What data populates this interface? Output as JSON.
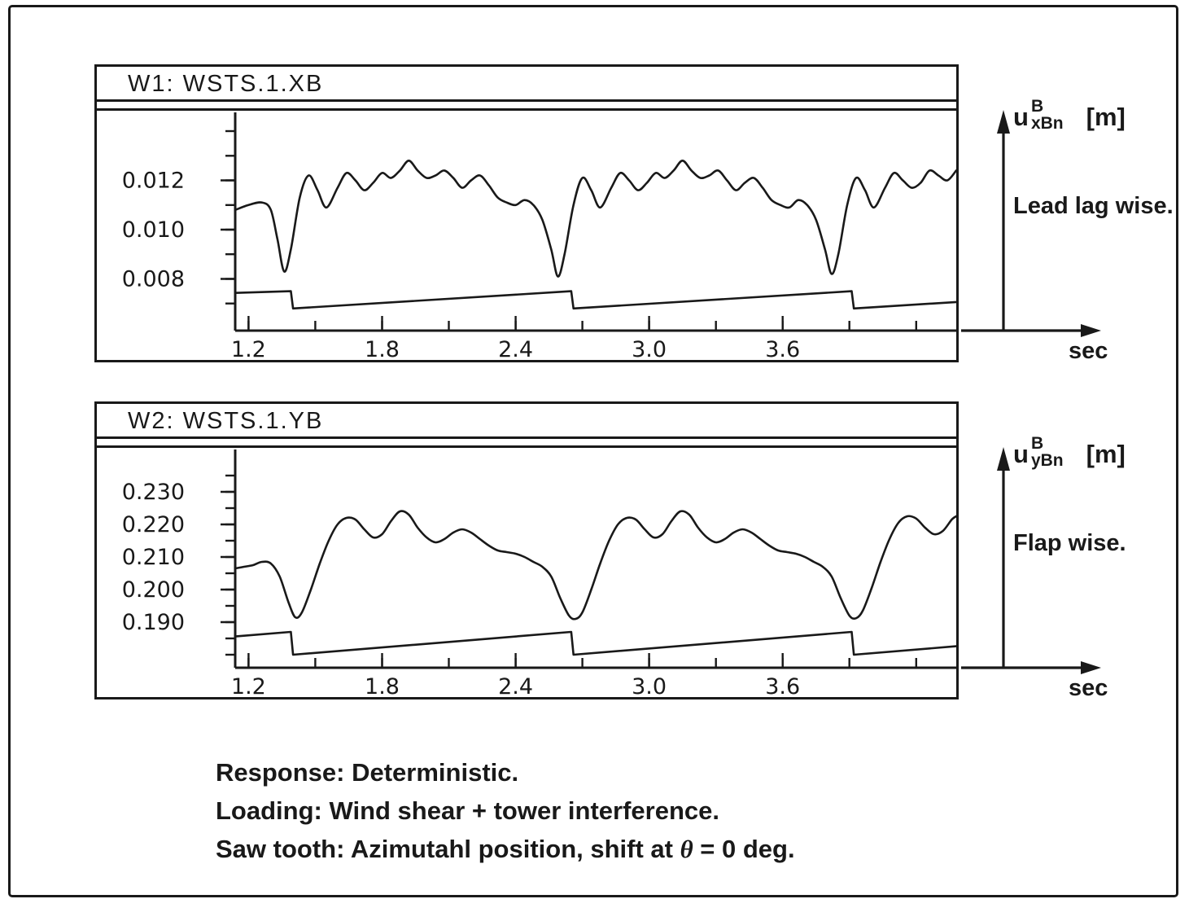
{
  "figure": {
    "caption": {
      "line1": "Response: Deterministic.",
      "line2": "Loading: Wind shear + tower interference.",
      "line3_prefix": "Saw tooth: Azimutahl position, shift at ",
      "line3_theta": "θ",
      "line3_suffix": " = 0 deg."
    },
    "colors": {
      "ink": "#191919",
      "paper": "#ffffff"
    }
  },
  "panels": [
    {
      "title": "W1:  WSTS.1.XB",
      "axis_label": {
        "base": "u",
        "sup": "B",
        "sub": "xBn",
        "unit": "[m]"
      },
      "direction_label": "Lead lag wise.",
      "x_unit": "sec"
    },
    {
      "title": "W2:  WSTS.1.YB",
      "axis_label": {
        "base": "u",
        "sup": "B",
        "sub": "yBn",
        "unit": "[m]"
      },
      "direction_label": "Flap wise.",
      "x_unit": "sec"
    }
  ],
  "chart_data": [
    {
      "type": "line",
      "title": "W1: WSTS.1.XB",
      "xlabel": "sec",
      "ylabel": "u_xBn^B [m] (Lead lag wise)",
      "xlim": [
        1.14,
        4.38
      ],
      "ylim": [
        0.0059,
        0.0141
      ],
      "grid": false,
      "xticks": {
        "minor": [
          1.2,
          1.5,
          1.8,
          2.1,
          2.4,
          2.7,
          3.0,
          3.3,
          3.6,
          3.9,
          4.2
        ],
        "major": [
          1.2,
          1.8,
          2.4,
          3.0,
          3.6
        ],
        "labels": [
          "1.2",
          "1.8",
          "2.4",
          "3.0",
          "3.6"
        ]
      },
      "yticks": {
        "minor": [
          0.007,
          0.008,
          0.009,
          0.01,
          0.011,
          0.012,
          0.013,
          0.014
        ],
        "major": [
          0.008,
          0.01,
          0.012
        ],
        "labels": [
          "0.008",
          "0.010",
          "0.012"
        ]
      },
      "series": [
        {
          "name": "blade-lead-lag-deflection",
          "smooth": true,
          "points": [
            [
              1.14,
              0.0108
            ],
            [
              1.2,
              0.011
            ],
            [
              1.26,
              0.0111
            ],
            [
              1.3,
              0.0108
            ],
            [
              1.33,
              0.0096
            ],
            [
              1.36,
              0.0083
            ],
            [
              1.39,
              0.0092
            ],
            [
              1.43,
              0.0113
            ],
            [
              1.47,
              0.0122
            ],
            [
              1.51,
              0.0116
            ],
            [
              1.55,
              0.0109
            ],
            [
              1.6,
              0.0117
            ],
            [
              1.64,
              0.0123
            ],
            [
              1.68,
              0.012
            ],
            [
              1.72,
              0.0116
            ],
            [
              1.76,
              0.0119
            ],
            [
              1.8,
              0.0123
            ],
            [
              1.84,
              0.0121
            ],
            [
              1.88,
              0.0124
            ],
            [
              1.92,
              0.0128
            ],
            [
              1.96,
              0.0124
            ],
            [
              2.0,
              0.0121
            ],
            [
              2.04,
              0.0122
            ],
            [
              2.08,
              0.0124
            ],
            [
              2.12,
              0.0121
            ],
            [
              2.16,
              0.0117
            ],
            [
              2.2,
              0.012
            ],
            [
              2.24,
              0.0122
            ],
            [
              2.28,
              0.0118
            ],
            [
              2.32,
              0.0113
            ],
            [
              2.36,
              0.0111
            ],
            [
              2.4,
              0.011
            ],
            [
              2.44,
              0.0112
            ],
            [
              2.48,
              0.011
            ],
            [
              2.52,
              0.0104
            ],
            [
              2.56,
              0.0092
            ],
            [
              2.59,
              0.0081
            ],
            [
              2.62,
              0.009
            ],
            [
              2.66,
              0.011
            ],
            [
              2.7,
              0.0121
            ],
            [
              2.74,
              0.0116
            ],
            [
              2.78,
              0.0109
            ],
            [
              2.83,
              0.0117
            ],
            [
              2.87,
              0.0123
            ],
            [
              2.91,
              0.012
            ],
            [
              2.95,
              0.0116
            ],
            [
              2.99,
              0.0119
            ],
            [
              3.03,
              0.0123
            ],
            [
              3.07,
              0.0121
            ],
            [
              3.11,
              0.0124
            ],
            [
              3.15,
              0.0128
            ],
            [
              3.19,
              0.0124
            ],
            [
              3.23,
              0.0121
            ],
            [
              3.27,
              0.0122
            ],
            [
              3.31,
              0.0124
            ],
            [
              3.35,
              0.012
            ],
            [
              3.39,
              0.0116
            ],
            [
              3.43,
              0.0119
            ],
            [
              3.47,
              0.0121
            ],
            [
              3.51,
              0.0117
            ],
            [
              3.55,
              0.0112
            ],
            [
              3.59,
              0.011
            ],
            [
              3.63,
              0.0109
            ],
            [
              3.67,
              0.0112
            ],
            [
              3.71,
              0.011
            ],
            [
              3.75,
              0.0104
            ],
            [
              3.79,
              0.0092
            ],
            [
              3.82,
              0.0082
            ],
            [
              3.85,
              0.009
            ],
            [
              3.89,
              0.011
            ],
            [
              3.93,
              0.0121
            ],
            [
              3.97,
              0.0116
            ],
            [
              4.01,
              0.0109
            ],
            [
              4.06,
              0.0117
            ],
            [
              4.1,
              0.0123
            ],
            [
              4.14,
              0.012
            ],
            [
              4.18,
              0.0117
            ],
            [
              4.22,
              0.0119
            ],
            [
              4.26,
              0.0124
            ],
            [
              4.3,
              0.0122
            ],
            [
              4.34,
              0.012
            ],
            [
              4.38,
              0.0124
            ]
          ]
        },
        {
          "name": "azimuth-sawtooth",
          "smooth": false,
          "points": [
            [
              1.14,
              0.00743
            ],
            [
              1.39,
              0.0075
            ],
            [
              1.4,
              0.0068
            ],
            [
              2.65,
              0.0075
            ],
            [
              2.66,
              0.0068
            ],
            [
              3.91,
              0.0075
            ],
            [
              3.92,
              0.0068
            ],
            [
              4.38,
              0.00706
            ]
          ]
        }
      ]
    },
    {
      "type": "line",
      "title": "W2: WSTS.1.YB",
      "xlabel": "sec",
      "ylabel": "u_yBn^B [m] (Flap wise)",
      "xlim": [
        1.14,
        4.38
      ],
      "ylim": [
        0.176,
        0.238
      ],
      "grid": false,
      "xticks": {
        "minor": [
          1.2,
          1.5,
          1.8,
          2.1,
          2.4,
          2.7,
          3.0,
          3.3,
          3.6,
          3.9,
          4.2
        ],
        "major": [
          1.2,
          1.8,
          2.4,
          3.0,
          3.6
        ],
        "labels": [
          "1.2",
          "1.8",
          "2.4",
          "3.0",
          "3.6"
        ]
      },
      "yticks": {
        "minor": [
          0.18,
          0.185,
          0.19,
          0.195,
          0.2,
          0.205,
          0.21,
          0.215,
          0.22,
          0.225,
          0.23,
          0.235
        ],
        "major": [
          0.19,
          0.2,
          0.21,
          0.22,
          0.23
        ],
        "labels": [
          "0.190",
          "0.200",
          "0.210",
          "0.220",
          "0.230"
        ]
      },
      "series": [
        {
          "name": "blade-flap-deflection",
          "smooth": true,
          "points": [
            [
              1.14,
              0.2065
            ],
            [
              1.18,
              0.207
            ],
            [
              1.22,
              0.2075
            ],
            [
              1.26,
              0.2085
            ],
            [
              1.3,
              0.208
            ],
            [
              1.34,
              0.204
            ],
            [
              1.38,
              0.196
            ],
            [
              1.41,
              0.1915
            ],
            [
              1.44,
              0.193
            ],
            [
              1.48,
              0.2
            ],
            [
              1.52,
              0.208
            ],
            [
              1.56,
              0.215
            ],
            [
              1.6,
              0.22
            ],
            [
              1.64,
              0.222
            ],
            [
              1.68,
              0.2215
            ],
            [
              1.72,
              0.2185
            ],
            [
              1.76,
              0.216
            ],
            [
              1.8,
              0.217
            ],
            [
              1.84,
              0.221
            ],
            [
              1.88,
              0.224
            ],
            [
              1.92,
              0.223
            ],
            [
              1.96,
              0.219
            ],
            [
              2.0,
              0.216
            ],
            [
              2.04,
              0.2145
            ],
            [
              2.08,
              0.2155
            ],
            [
              2.12,
              0.2175
            ],
            [
              2.16,
              0.2185
            ],
            [
              2.2,
              0.2175
            ],
            [
              2.24,
              0.2155
            ],
            [
              2.28,
              0.2135
            ],
            [
              2.32,
              0.212
            ],
            [
              2.36,
              0.2115
            ],
            [
              2.4,
              0.211
            ],
            [
              2.44,
              0.21
            ],
            [
              2.48,
              0.2085
            ],
            [
              2.52,
              0.207
            ],
            [
              2.56,
              0.204
            ],
            [
              2.6,
              0.1975
            ],
            [
              2.64,
              0.192
            ],
            [
              2.67,
              0.191
            ],
            [
              2.7,
              0.193
            ],
            [
              2.74,
              0.2
            ],
            [
              2.78,
              0.208
            ],
            [
              2.82,
              0.215
            ],
            [
              2.86,
              0.22
            ],
            [
              2.9,
              0.222
            ],
            [
              2.94,
              0.2215
            ],
            [
              2.98,
              0.2185
            ],
            [
              3.02,
              0.216
            ],
            [
              3.06,
              0.217
            ],
            [
              3.1,
              0.221
            ],
            [
              3.14,
              0.224
            ],
            [
              3.18,
              0.223
            ],
            [
              3.22,
              0.219
            ],
            [
              3.26,
              0.216
            ],
            [
              3.3,
              0.2145
            ],
            [
              3.34,
              0.2155
            ],
            [
              3.38,
              0.2175
            ],
            [
              3.42,
              0.2185
            ],
            [
              3.46,
              0.2175
            ],
            [
              3.5,
              0.2155
            ],
            [
              3.54,
              0.2135
            ],
            [
              3.58,
              0.212
            ],
            [
              3.62,
              0.2115
            ],
            [
              3.66,
              0.211
            ],
            [
              3.7,
              0.21
            ],
            [
              3.74,
              0.2085
            ],
            [
              3.78,
              0.207
            ],
            [
              3.82,
              0.204
            ],
            [
              3.86,
              0.1975
            ],
            [
              3.9,
              0.192
            ],
            [
              3.93,
              0.1912
            ],
            [
              3.96,
              0.1935
            ],
            [
              4.0,
              0.2005
            ],
            [
              4.04,
              0.2085
            ],
            [
              4.08,
              0.2155
            ],
            [
              4.12,
              0.2205
            ],
            [
              4.16,
              0.2225
            ],
            [
              4.2,
              0.2218
            ],
            [
              4.24,
              0.219
            ],
            [
              4.28,
              0.217
            ],
            [
              4.32,
              0.218
            ],
            [
              4.36,
              0.2215
            ],
            [
              4.38,
              0.2225
            ]
          ]
        },
        {
          "name": "azimuth-sawtooth",
          "smooth": false,
          "points": [
            [
              1.14,
              0.1856
            ],
            [
              1.39,
              0.187
            ],
            [
              1.4,
              0.18
            ],
            [
              2.65,
              0.187
            ],
            [
              2.66,
              0.18
            ],
            [
              3.91,
              0.187
            ],
            [
              3.92,
              0.18
            ],
            [
              4.38,
              0.1826
            ]
          ]
        }
      ]
    }
  ]
}
